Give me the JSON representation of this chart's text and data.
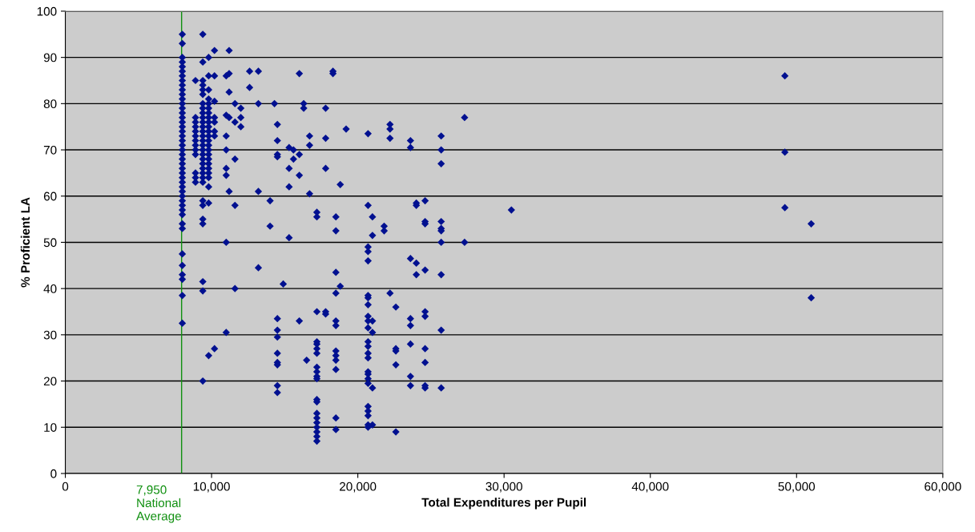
{
  "chart_data": {
    "type": "scatter",
    "xlabel": "Total Expenditures per Pupil",
    "ylabel": "% Proficient LA",
    "xlim": [
      0,
      60000
    ],
    "ylim": [
      0,
      100
    ],
    "xticks": [
      0,
      {
        "value": 10000,
        "label": "10,000"
      },
      {
        "value": 20000,
        "label": "20,000"
      },
      {
        "value": 30000,
        "label": "30,000"
      },
      {
        "value": 40000,
        "label": "40,000"
      },
      {
        "value": 50000,
        "label": "50,000"
      },
      {
        "value": 60000,
        "label": "60,000"
      }
    ],
    "yticks": [
      0,
      10,
      20,
      30,
      40,
      50,
      60,
      70,
      80,
      90,
      100
    ],
    "grid": "y",
    "marker": "diamond",
    "ref_lines": [
      {
        "axis": "x",
        "value": 7950,
        "label": "7,950\nNational\nAverage",
        "color": "#109010"
      }
    ],
    "series": [
      {
        "color": "#001090",
        "x": [
          8000,
          8000,
          8000,
          8000,
          8000,
          8000,
          8000,
          8000,
          8000,
          8000,
          8000,
          8000,
          8000,
          8000,
          8000,
          8000,
          8000,
          8000,
          8000,
          8000,
          8000,
          8000,
          8000,
          8000,
          8000,
          8000,
          8000,
          8000,
          8000,
          8000,
          8000,
          8000,
          8000,
          8000,
          8000,
          8000,
          8000,
          8000,
          8000,
          8000,
          8000,
          8000,
          8000,
          8000,
          8000,
          9400,
          9400,
          9400,
          9400,
          9400,
          9400,
          9400,
          9400,
          9400,
          9400,
          9400,
          9400,
          9400,
          9400,
          9400,
          9400,
          9400,
          9400,
          9400,
          9400,
          9400,
          9400,
          9400,
          9400,
          9400,
          9400,
          9400,
          9400,
          9400,
          9400,
          9400,
          8900,
          8900,
          8900,
          8900,
          8900,
          8900,
          8900,
          8900,
          8900,
          8900,
          8900,
          8900,
          8900,
          9800,
          9800,
          9800,
          9800,
          9800,
          9800,
          9800,
          9800,
          9800,
          9800,
          9800,
          9800,
          9800,
          9800,
          9800,
          9800,
          9800,
          9800,
          9800,
          9800,
          9800,
          9800,
          9800,
          9800,
          10200,
          10200,
          10200,
          10200,
          10200,
          10200,
          10200,
          10200,
          11000,
          11000,
          11000,
          11000,
          11000,
          11000,
          11000,
          11000,
          11200,
          11200,
          11200,
          11200,
          11200,
          11600,
          11600,
          11600,
          11600,
          11600,
          12000,
          12000,
          12000,
          12600,
          12600,
          13200,
          13200,
          13200,
          13200,
          14000,
          14000,
          14300,
          14500,
          14500,
          14500,
          14500,
          14500,
          14500,
          14500,
          14500,
          14500,
          14500,
          14500,
          14500,
          14900,
          15300,
          15300,
          15300,
          15300,
          15600,
          15600,
          16000,
          16000,
          16000,
          16000,
          16300,
          16300,
          16500,
          16700,
          16700,
          16700,
          17200,
          17200,
          17200,
          17200,
          17200,
          17200,
          17200,
          17200,
          17200,
          17200,
          17200,
          17200,
          17200,
          17200,
          17200,
          17200,
          17200,
          17200,
          17200,
          17200,
          17800,
          17800,
          17800,
          17800,
          17800,
          18300,
          18300,
          18500,
          18500,
          18500,
          18500,
          18500,
          18500,
          18500,
          18500,
          18500,
          18500,
          18500,
          18500,
          18800,
          18800,
          19200,
          20700,
          20700,
          20700,
          20700,
          20700,
          20700,
          20700,
          20700,
          20700,
          20700,
          20700,
          20700,
          20700,
          20700,
          20700,
          20700,
          20700,
          20700,
          20700,
          20700,
          20700,
          20700,
          20700,
          20700,
          21000,
          21000,
          21000,
          21000,
          21000,
          21000,
          21800,
          21800,
          22200,
          22200,
          22200,
          22200,
          22600,
          22600,
          22600,
          22600,
          22600,
          23600,
          23600,
          23600,
          23600,
          23600,
          23600,
          23600,
          23600,
          24000,
          24000,
          24000,
          24000,
          24600,
          24600,
          24600,
          24600,
          24600,
          24600,
          24600,
          24600,
          24600,
          24600,
          25700,
          25700,
          25700,
          25700,
          25700,
          25700,
          25700,
          25700,
          25700,
          25700,
          27300,
          27300,
          30500,
          49200,
          49200,
          49200,
          51000,
          51000
        ],
        "values": [
          95,
          93,
          90,
          89,
          88,
          87,
          86,
          85,
          84,
          83,
          82,
          81,
          80,
          79,
          78,
          77,
          76,
          75,
          74,
          73,
          72,
          71,
          70,
          69,
          68,
          67,
          66,
          65,
          64,
          63,
          62,
          61,
          60,
          59,
          58,
          57,
          56,
          54,
          53,
          47.5,
          45,
          43,
          42,
          38.5,
          32.5,
          95,
          89,
          85,
          84,
          83,
          82,
          80,
          79,
          78,
          77,
          76,
          75,
          74,
          73,
          72,
          71,
          70,
          69,
          68,
          67,
          66,
          65,
          64,
          63,
          59,
          58,
          55,
          54,
          41.5,
          39.5,
          20,
          85,
          77,
          76,
          75,
          74,
          73,
          72,
          71,
          70,
          69,
          65,
          64,
          63,
          90,
          86,
          83,
          81,
          80,
          79,
          78,
          77,
          76,
          75,
          74,
          73,
          72,
          71,
          70,
          69,
          68,
          67,
          66,
          65,
          64,
          62,
          58.5,
          25.5,
          91.5,
          86,
          80.5,
          77,
          76,
          74,
          73,
          27,
          86,
          77.5,
          73,
          70,
          66,
          64.5,
          50,
          30.5,
          91.5,
          86.5,
          82.5,
          77,
          61,
          80,
          76,
          68,
          58,
          40,
          79,
          77,
          75,
          87,
          83.5,
          87,
          80,
          61,
          44.5,
          59,
          53.5,
          80,
          75.5,
          72,
          69,
          68.5,
          33.5,
          31,
          29.5,
          26,
          24,
          23.5,
          19,
          17.5,
          41,
          66,
          70.5,
          62,
          51,
          68,
          70,
          86.5,
          69,
          64.5,
          33,
          80,
          79,
          24.5,
          71,
          73,
          60.5,
          56.5,
          55.5,
          35,
          28.5,
          28,
          27,
          26,
          23,
          22,
          21,
          20.5,
          16,
          15.5,
          13,
          12,
          11,
          10,
          9,
          8,
          7,
          79,
          66,
          72.5,
          35,
          34.5,
          86.5,
          87,
          55.5,
          52.5,
          43.5,
          39,
          33,
          32,
          26.5,
          25.5,
          24.5,
          22.5,
          12,
          9.5,
          62.5,
          40.5,
          74.5,
          73.5,
          58,
          49,
          48,
          46,
          38.5,
          38,
          36.5,
          34,
          33,
          31.5,
          28.5,
          27.5,
          26,
          25,
          22,
          21.5,
          20.5,
          19.5,
          14.5,
          13.5,
          12.5,
          10.5,
          10,
          55.5,
          51.5,
          33,
          30.5,
          18.5,
          10.5,
          53.5,
          52.5,
          75.5,
          74.5,
          72.5,
          39,
          36,
          27,
          26.5,
          23.5,
          9,
          72,
          70.5,
          46.5,
          33.5,
          32,
          28,
          21,
          19,
          58.5,
          58,
          45.5,
          43,
          59,
          54.5,
          54,
          44,
          35,
          34,
          27,
          24,
          19,
          18.5,
          73,
          70,
          67,
          54.5,
          53,
          52.5,
          50,
          43,
          31,
          18.5,
          77,
          50,
          57,
          86,
          69.5,
          57.5,
          54,
          38
        ]
      }
    ]
  }
}
